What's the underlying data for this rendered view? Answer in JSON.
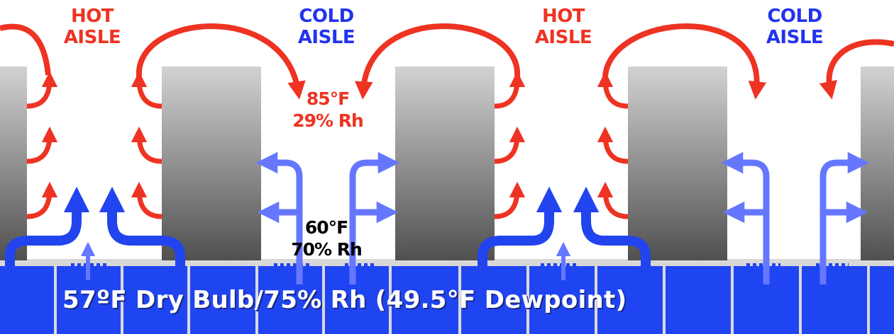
{
  "diagram": {
    "aisle_labels": [
      {
        "type": "hot",
        "line1": "HOT",
        "line2": "AISLE"
      },
      {
        "type": "cold",
        "line1": "COLD",
        "line2": "AISLE"
      },
      {
        "type": "hot",
        "line1": "HOT",
        "line2": "AISLE"
      },
      {
        "type": "cold",
        "line1": "COLD",
        "line2": "AISLE"
      }
    ],
    "hot_air_condition": {
      "temperature": "85°F",
      "humidity": "29% Rh"
    },
    "cold_air_condition": {
      "temperature": "60°F",
      "humidity": "70% Rh"
    },
    "supply_air_condition": "57ºF Dry Bulb/75% Rh (49.5°F Dewpoint)",
    "colors": {
      "hot_air": "#ee3322",
      "cold_air_strong": "#2244ee",
      "cold_air_light": "#6677ff",
      "raised_floor": "#1f45f2",
      "rack_light": "#cccccc",
      "rack_dark": "#555555"
    }
  }
}
